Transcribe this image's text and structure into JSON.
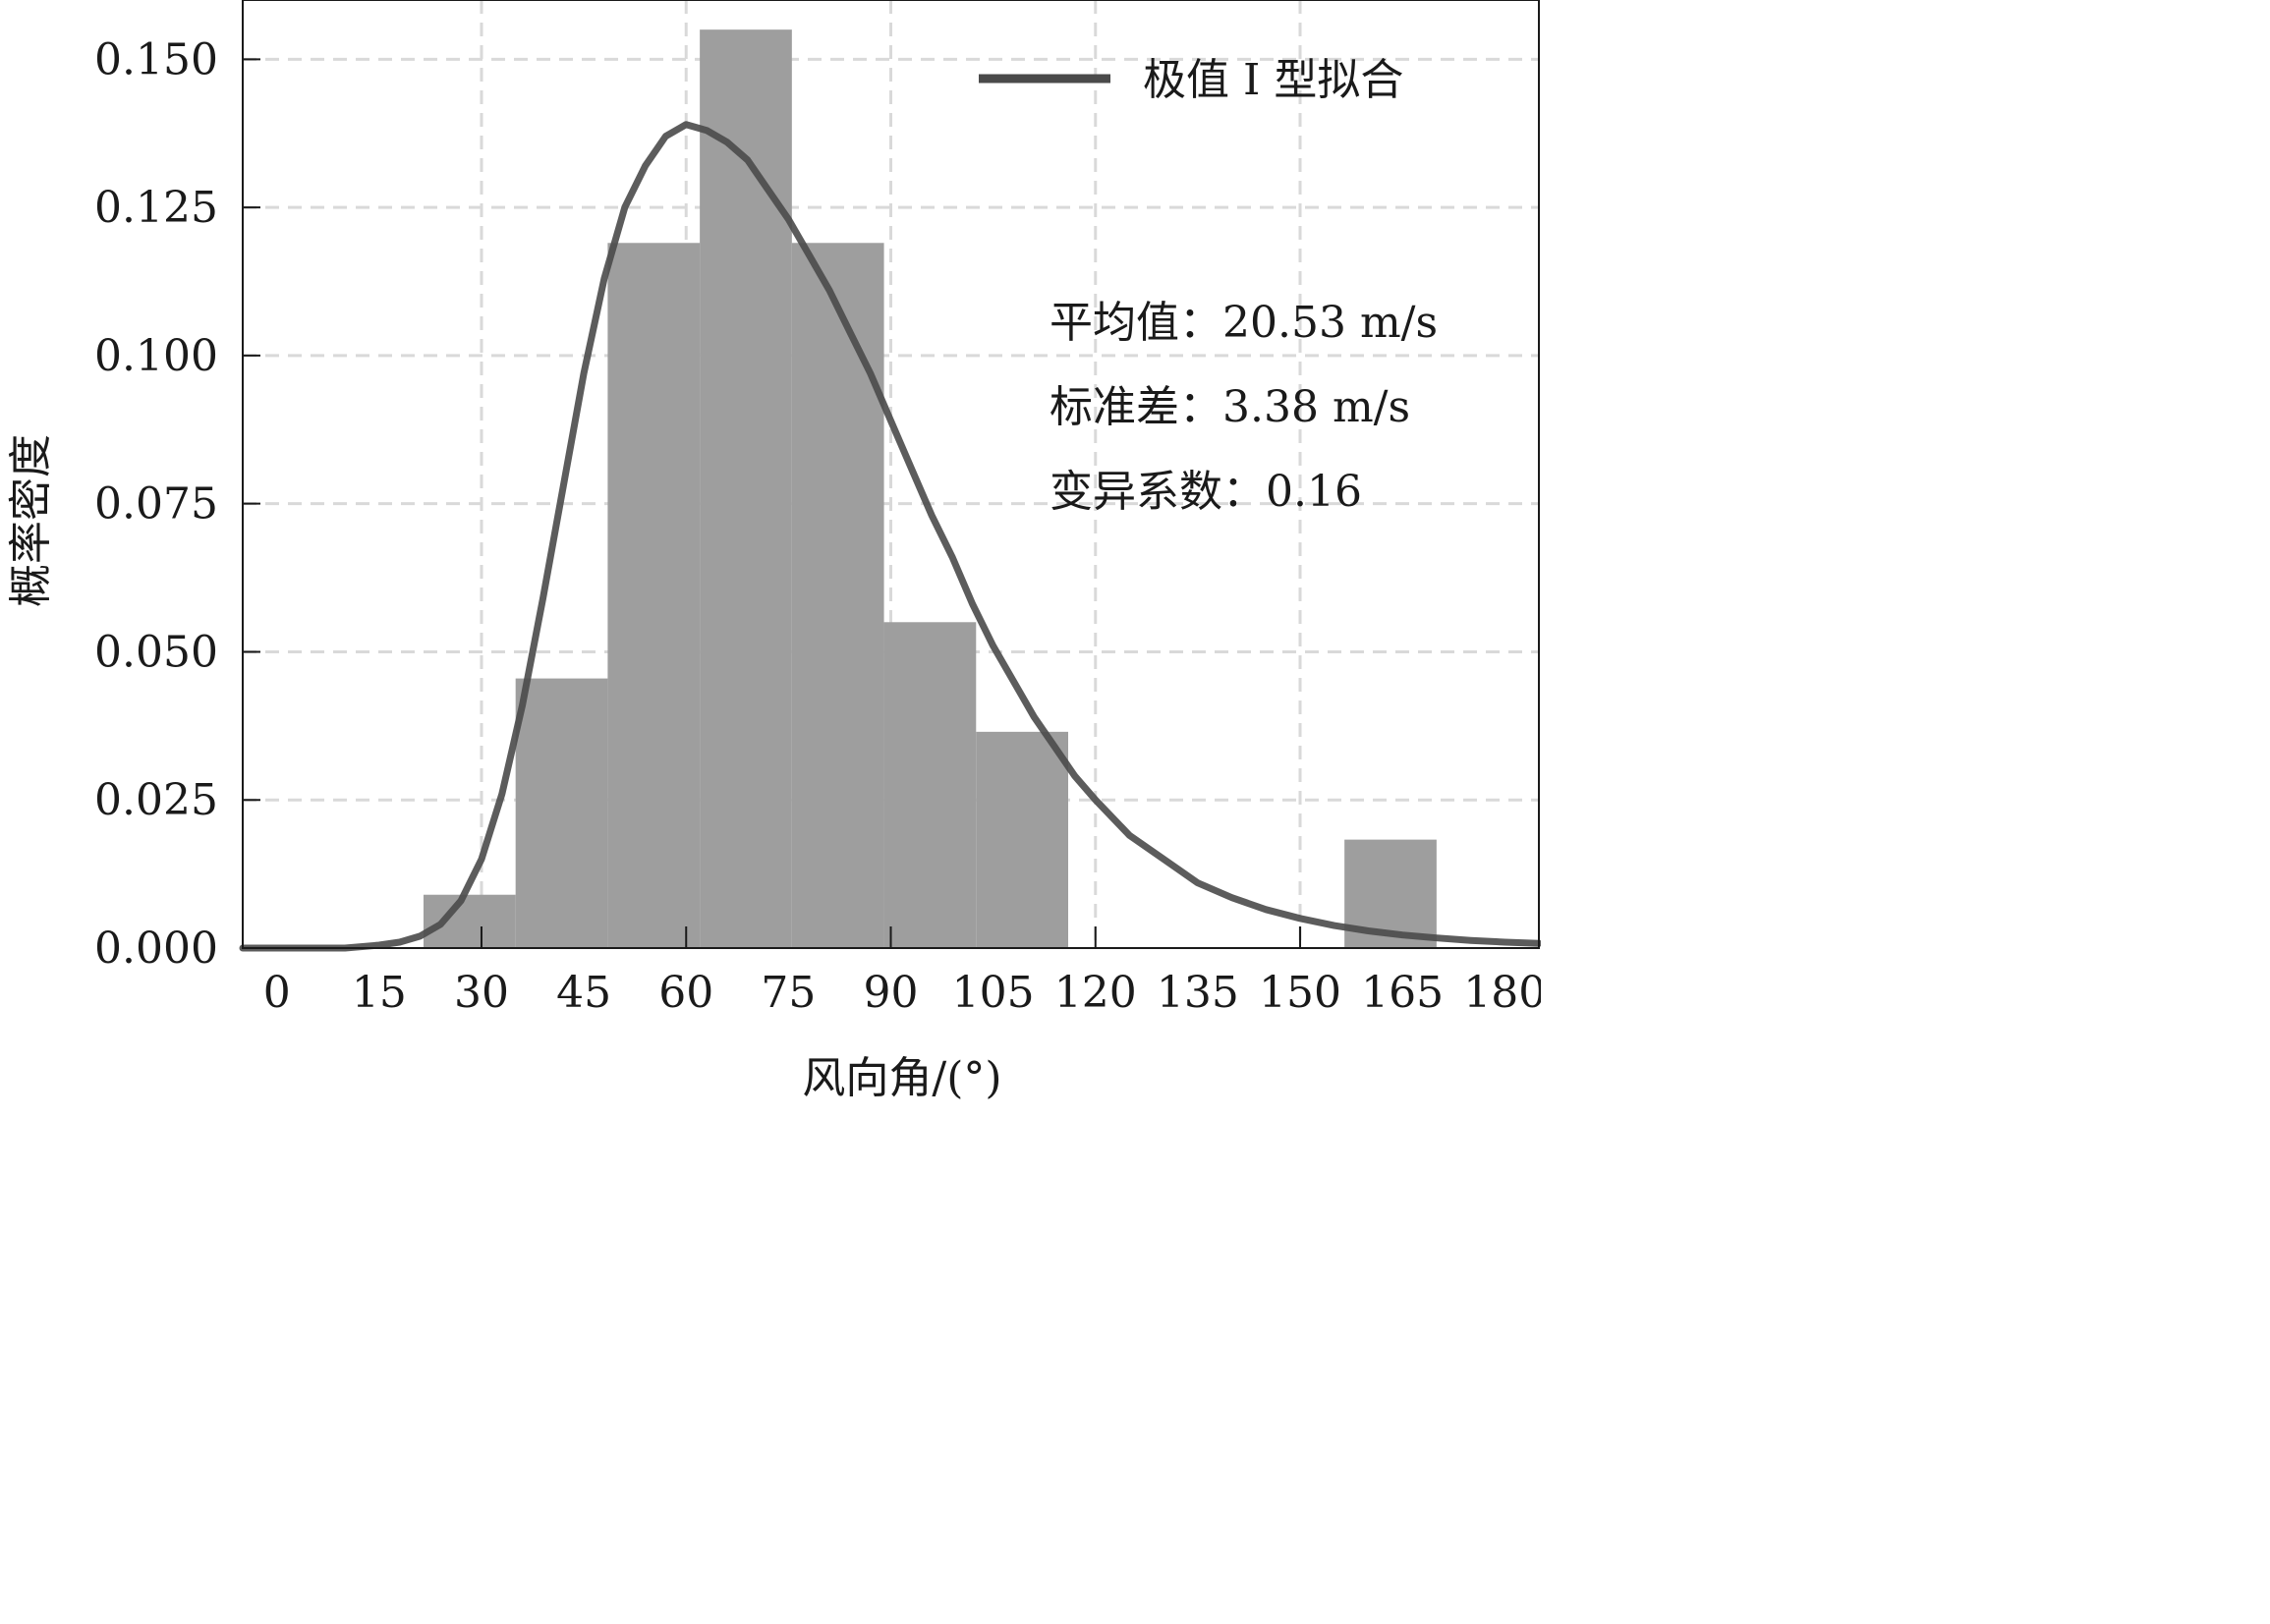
{
  "chart_data": {
    "type": "bar",
    "xlabel": "风向角/(°)",
    "ylabel": "概率密度",
    "xlim": [
      -5,
      185
    ],
    "ylim": [
      0,
      0.16
    ],
    "x_ticks": [
      0,
      15,
      30,
      45,
      60,
      75,
      90,
      105,
      120,
      135,
      150,
      165,
      180
    ],
    "y_ticks": [
      "0.000",
      "0.025",
      "0.050",
      "0.075",
      "0.100",
      "0.125",
      "0.150"
    ],
    "y_tick_values": [
      0,
      0.025,
      0.05,
      0.075,
      0.1,
      0.125,
      0.15
    ],
    "x_grid": [
      30,
      60,
      90,
      120,
      150
    ],
    "grid": true,
    "histogram": {
      "bins": [
        {
          "x0": 21.5,
          "x1": 35.0,
          "value": 0.009
        },
        {
          "x0": 35.0,
          "x1": 48.5,
          "value": 0.0455
        },
        {
          "x0": 48.5,
          "x1": 62.0,
          "value": 0.119
        },
        {
          "x0": 62.0,
          "x1": 75.5,
          "value": 0.155
        },
        {
          "x0": 75.5,
          "x1": 89.0,
          "value": 0.119
        },
        {
          "x0": 89.0,
          "x1": 102.5,
          "value": 0.055
        },
        {
          "x0": 102.5,
          "x1": 116.0,
          "value": 0.0365
        },
        {
          "x0": 116.0,
          "x1": 129.5,
          "value": 0
        },
        {
          "x0": 129.5,
          "x1": 143.0,
          "value": 0
        },
        {
          "x0": 143.0,
          "x1": 156.5,
          "value": 0
        },
        {
          "x0": 156.5,
          "x1": 170.0,
          "value": 0.0183
        }
      ],
      "color": "#9e9e9e"
    },
    "series": [
      {
        "name": "极值 I 型拟合",
        "type": "line",
        "color": "#4a4a4a",
        "x": [
          -5,
          10,
          15,
          18,
          21,
          24,
          27,
          30,
          33,
          36,
          39,
          42,
          45,
          48,
          51,
          54,
          57,
          60,
          63,
          66,
          69,
          72,
          75,
          78,
          81,
          84,
          87,
          90,
          93,
          96,
          99,
          102,
          105,
          108,
          111,
          114,
          117,
          120,
          125,
          130,
          135,
          140,
          145,
          150,
          155,
          160,
          165,
          170,
          175,
          180,
          185
        ],
        "y": [
          0,
          0,
          0.0005,
          0.001,
          0.002,
          0.004,
          0.008,
          0.015,
          0.026,
          0.041,
          0.059,
          0.078,
          0.097,
          0.113,
          0.125,
          0.132,
          0.137,
          0.139,
          0.138,
          0.136,
          0.133,
          0.128,
          0.123,
          0.117,
          0.111,
          0.104,
          0.097,
          0.089,
          0.081,
          0.073,
          0.066,
          0.058,
          0.051,
          0.045,
          0.039,
          0.034,
          0.029,
          0.025,
          0.019,
          0.015,
          0.011,
          0.0085,
          0.0065,
          0.005,
          0.0038,
          0.0029,
          0.0022,
          0.0017,
          0.0013,
          0.001,
          0.0008
        ]
      }
    ],
    "legend": {
      "position": "top-right",
      "label": "极值 I 型拟合"
    },
    "annotations": [
      "平均值：20.53 m/s",
      "标准差：3.38 m/s",
      "变异系数：0.16"
    ]
  }
}
